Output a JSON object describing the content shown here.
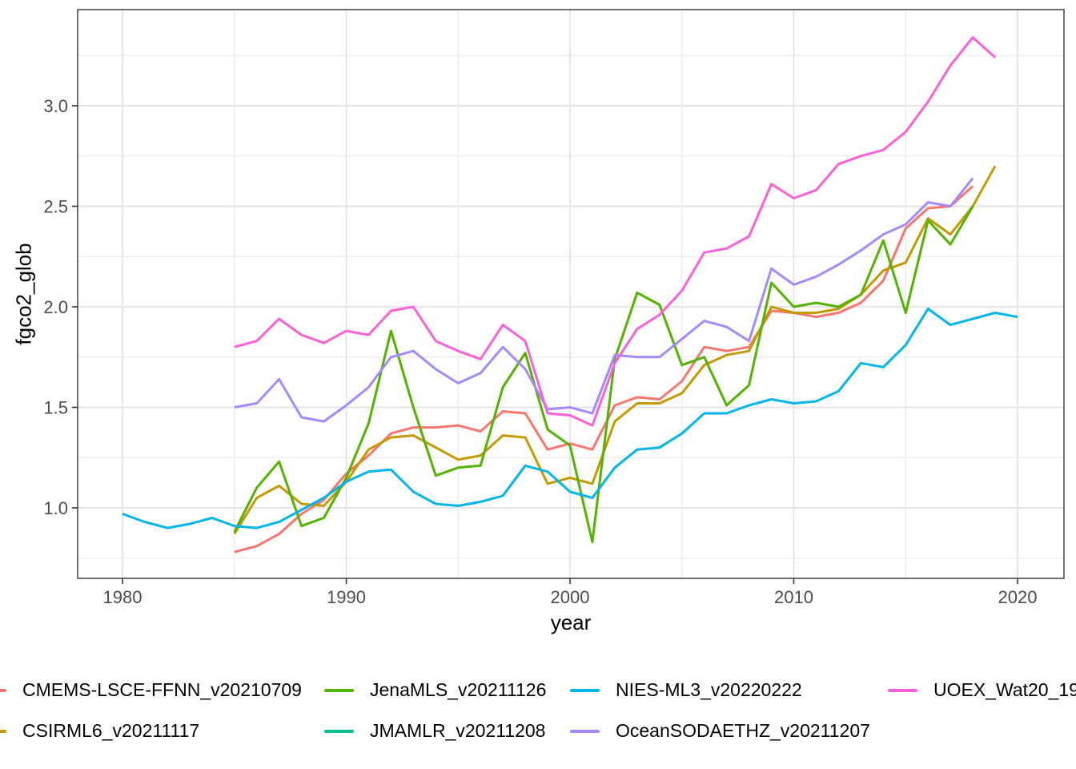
{
  "figure": {
    "background": "#ffffff",
    "panel_border_color": "#333333",
    "grid_major_color": "#e3e3e3",
    "grid_minor_color": "#ededed",
    "axis_text_color": "#4d4d4d"
  },
  "chart_data": {
    "type": "line",
    "title": "",
    "xlabel": "year",
    "ylabel": "fgco2_glob",
    "x_ticks": [
      1980,
      1990,
      2000,
      2010,
      2020
    ],
    "x_minor_ticks": [
      1985,
      1995,
      2005,
      2015
    ],
    "y_ticks": [
      "1.0",
      "1.5",
      "2.0",
      "2.5",
      "3.0"
    ],
    "y_minor_ticks": [
      0.75,
      1.25,
      1.75,
      2.25,
      2.75,
      3.25
    ],
    "xlim": [
      1978,
      2021.7
    ],
    "ylim": [
      0.65,
      3.48
    ],
    "grid": true,
    "legend_position": "bottom",
    "series": [
      {
        "name": "CMEMS-LSCE-FFNN_v20210709",
        "color": "#F8766D",
        "start_year": 1985,
        "values": [
          0.78,
          0.81,
          0.87,
          0.97,
          1.04,
          1.17,
          1.26,
          1.37,
          1.4,
          1.4,
          1.41,
          1.38,
          1.48,
          1.47,
          1.29,
          1.32,
          1.29,
          1.51,
          1.55,
          1.54,
          1.63,
          1.8,
          1.78,
          1.8,
          1.98,
          1.97,
          1.95,
          1.97,
          2.02,
          2.13,
          2.39,
          2.49,
          2.5,
          2.6
        ]
      },
      {
        "name": "CSIRML6_v20211117",
        "color": "#C49A00",
        "start_year": 1985,
        "values": [
          0.87,
          1.05,
          1.11,
          1.02,
          1.01,
          1.13,
          1.29,
          1.35,
          1.36,
          1.3,
          1.24,
          1.26,
          1.36,
          1.35,
          1.12,
          1.15,
          1.12,
          1.43,
          1.52,
          1.52,
          1.57,
          1.71,
          1.76,
          1.78,
          2.0,
          1.97,
          1.97,
          1.99,
          2.06,
          2.18,
          2.22,
          2.44,
          2.36,
          2.5,
          2.7
        ]
      },
      {
        "name": "JenaMLS_v20211126",
        "color": "#53B400",
        "start_year": 1985,
        "values": [
          0.88,
          1.1,
          1.23,
          0.91,
          0.95,
          1.15,
          1.42,
          1.88,
          1.5,
          1.16,
          1.2,
          1.21,
          1.6,
          1.77,
          1.39,
          1.31,
          0.83,
          1.74,
          2.07,
          2.01,
          1.71,
          1.75,
          1.51,
          1.61,
          2.12,
          2.0,
          2.02,
          2.0,
          2.06,
          2.33,
          1.97,
          2.43,
          2.31,
          2.5
        ]
      },
      {
        "name": "JMAMLR_v20211208",
        "color": "#00C094",
        "start_year": null,
        "values": null
      },
      {
        "name": "NIES-ML3_v20220222",
        "color": "#00B6EB",
        "start_year": 1980,
        "values": [
          0.97,
          0.93,
          0.9,
          0.92,
          0.95,
          0.91,
          0.9,
          0.93,
          0.99,
          1.05,
          1.13,
          1.18,
          1.19,
          1.08,
          1.02,
          1.01,
          1.03,
          1.06,
          1.21,
          1.18,
          1.08,
          1.05,
          1.2,
          1.29,
          1.3,
          1.37,
          1.47,
          1.47,
          1.51,
          1.54,
          1.52,
          1.53,
          1.58,
          1.72,
          1.7,
          1.81,
          1.99,
          1.91,
          1.94,
          1.97,
          1.95
        ]
      },
      {
        "name": "OceanSODAETHZ_v20211207",
        "color": "#A58AFF",
        "start_year": 1985,
        "values": [
          1.5,
          1.52,
          1.64,
          1.45,
          1.43,
          1.51,
          1.6,
          1.75,
          1.78,
          1.69,
          1.62,
          1.67,
          1.8,
          1.69,
          1.49,
          1.5,
          1.47,
          1.76,
          1.75,
          1.75,
          1.84,
          1.93,
          1.9,
          1.83,
          2.19,
          2.11,
          2.15,
          2.21,
          2.28,
          2.36,
          2.41,
          2.52,
          2.5,
          2.64
        ]
      },
      {
        "name": "UOEX_Wat20_19",
        "color": "#FB61D7",
        "start_year": 1985,
        "values": [
          1.8,
          1.83,
          1.94,
          1.86,
          1.82,
          1.88,
          1.86,
          1.98,
          2.0,
          1.83,
          1.78,
          1.74,
          1.91,
          1.83,
          1.47,
          1.46,
          1.41,
          1.72,
          1.89,
          1.96,
          2.08,
          2.27,
          2.29,
          2.35,
          2.61,
          2.54,
          2.58,
          2.71,
          2.75,
          2.78,
          2.87,
          3.02,
          3.2,
          3.34,
          3.24
        ]
      }
    ]
  }
}
